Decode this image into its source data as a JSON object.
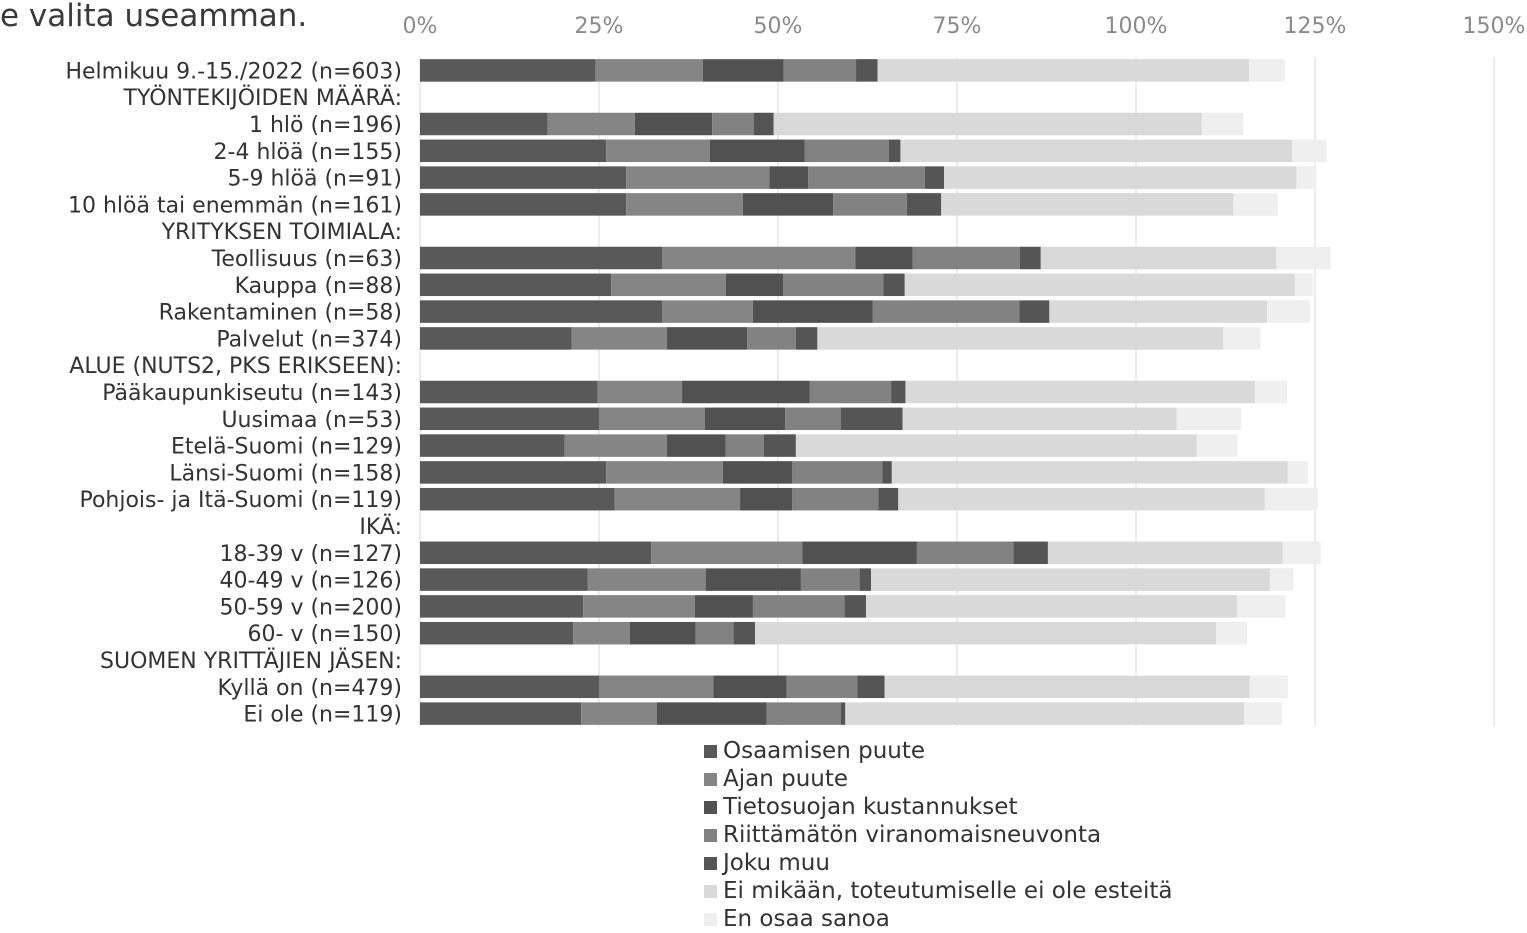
{
  "title": "e valita useamman.",
  "chart_data": {
    "type": "bar",
    "orientation": "horizontal",
    "stacked": true,
    "categories": [
      "Helmikuu 9.-15./2022 (n=603)",
      "TYÖNTEKIJÖIDEN MÄÄRÄ:",
      "1 hlö (n=196)",
      "2-4 hlöä (n=155)",
      "5-9 hlöä (n=91)",
      "10 hlöä tai enemmän (n=161)",
      "YRITYKSEN TOIMIALA:",
      "Teollisuus (n=63)",
      "Kauppa (n=88)",
      "Rakentaminen (n=58)",
      "Palvelut (n=374)",
      "ALUE (NUTS2, PKS ERIKSEEN):",
      "Pääkaupunkiseutu (n=143)",
      "Uusimaa (n=53)",
      "Etelä-Suomi (n=129)",
      "Länsi-Suomi (n=158)",
      "Pohjois- ja Itä-Suomi (n=119)",
      "IKÄ:",
      "18-39 v (n=127)",
      "40-49 v (n=126)",
      "50-59 v (n=200)",
      "60- v (n=150)",
      "SUOMEN YRITTÄJIEN JÄSEN:",
      "Kyllä on (n=479)",
      "Ei ole (n=119)"
    ],
    "series": [
      {
        "name": "Osaamisen puute",
        "color": "#595959",
        "values": [
          24.5,
          null,
          17.8,
          26.0,
          28.8,
          28.8,
          null,
          33.8,
          26.7,
          33.8,
          21.2,
          null,
          24.8,
          25.0,
          20.2,
          26.0,
          27.2,
          null,
          32.3,
          23.4,
          22.8,
          21.4,
          null,
          25.0,
          22.5
        ]
      },
      {
        "name": "Ajan puute",
        "color": "#858585",
        "values": [
          15.0,
          null,
          12.2,
          14.5,
          20.0,
          16.3,
          null,
          27.0,
          16.0,
          12.7,
          13.3,
          null,
          11.8,
          14.8,
          14.3,
          16.3,
          17.5,
          null,
          21.1,
          16.5,
          15.6,
          7.9,
          null,
          16.0,
          10.6
        ]
      },
      {
        "name": "Tietosuojan kustannukset",
        "color": "#515151",
        "values": [
          11.3,
          null,
          10.8,
          13.2,
          5.4,
          12.6,
          null,
          8.0,
          8.0,
          16.7,
          11.2,
          null,
          17.8,
          11.2,
          8.2,
          9.7,
          7.3,
          null,
          16.0,
          13.3,
          8.1,
          9.2,
          null,
          10.2,
          15.3
        ]
      },
      {
        "name": "Riittämätön viranomaisneuvonta",
        "color": "#828282",
        "values": [
          10.1,
          null,
          5.8,
          11.8,
          16.3,
          10.3,
          null,
          15.0,
          14.0,
          20.5,
          6.8,
          null,
          11.4,
          7.8,
          5.3,
          12.6,
          12.0,
          null,
          13.5,
          8.2,
          12.8,
          5.3,
          null,
          9.9,
          10.4
        ]
      },
      {
        "name": "Joku muu",
        "color": "#555555",
        "values": [
          3.0,
          null,
          2.8,
          1.6,
          2.7,
          4.8,
          null,
          2.9,
          3.0,
          4.2,
          3.0,
          null,
          2.0,
          8.6,
          4.5,
          1.3,
          2.8,
          null,
          4.8,
          1.6,
          3.0,
          3.0,
          null,
          3.8,
          0.6
        ]
      },
      {
        "name": "Ei mikään, toteutumiselle ei ole esteitä",
        "color": "#d9d9d9",
        "values": [
          51.9,
          null,
          59.8,
          54.7,
          49.2,
          40.8,
          null,
          32.9,
          54.5,
          30.4,
          56.7,
          null,
          48.8,
          38.3,
          56.0,
          55.3,
          51.2,
          null,
          32.8,
          55.7,
          51.8,
          64.4,
          null,
          51.0,
          55.7
        ]
      },
      {
        "name": "En osaa sanoa",
        "color": "#efefef",
        "values": [
          5.0,
          null,
          5.8,
          4.8,
          2.8,
          6.2,
          null,
          7.6,
          2.5,
          6.0,
          5.2,
          null,
          4.5,
          9.0,
          5.7,
          2.8,
          7.4,
          null,
          5.3,
          3.3,
          6.8,
          4.3,
          null,
          5.3,
          5.3
        ]
      }
    ],
    "xlim": [
      0,
      150
    ],
    "xticks": [
      "0%",
      "25%",
      "50%",
      "75%",
      "100%",
      "125%",
      "150%"
    ],
    "grid": true,
    "legend": "bottom"
  }
}
